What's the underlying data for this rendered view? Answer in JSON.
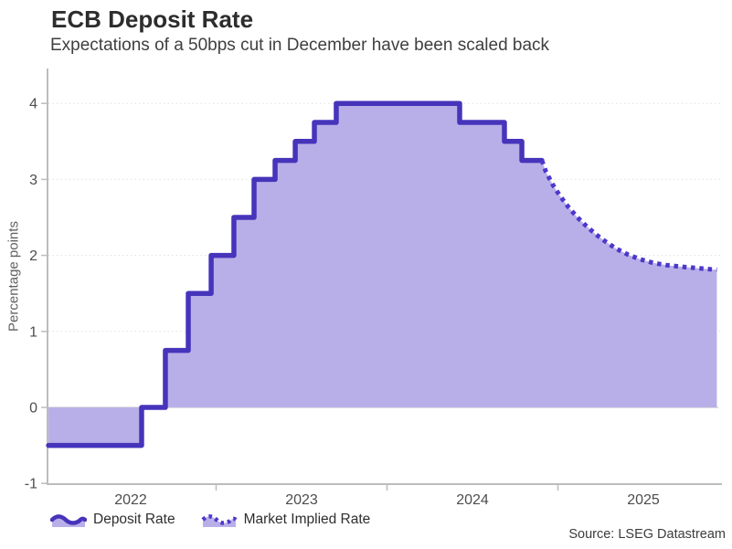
{
  "header": {
    "title": "ECB Deposit Rate",
    "subtitle": "Expectations of a 50bps cut in December have been scaled back"
  },
  "source": "Source: LSEG Datastream",
  "legend": [
    {
      "label": "Deposit Rate",
      "style": "solid-area"
    },
    {
      "label": "Market Implied Rate",
      "style": "dotted-area"
    }
  ],
  "colors": {
    "line": "#4634bb",
    "dots": "#4b38cc",
    "fill": "#b9afe8",
    "axis": "#bcbcbc",
    "grid": "#e0e0e0",
    "zero_line": "#cccccc",
    "tick_text": "#4d4d4d"
  },
  "chart_data": {
    "type": "area",
    "title": "ECB Deposit Rate",
    "ylabel": "Percentage points",
    "grid": "horizontal-dotted",
    "legend_position": "bottom-left",
    "ylim": [
      -1,
      4.4
    ],
    "xlim": [
      2022.019,
      2025.93
    ],
    "y_ticks": [
      -1,
      0,
      1,
      2,
      3,
      4
    ],
    "x_ticks": [
      2023,
      2024,
      2025
    ],
    "x_labels": [
      {
        "t": 2022.5,
        "label": "2022"
      },
      {
        "t": 2023.5,
        "label": "2023"
      },
      {
        "t": 2024.5,
        "label": "2024"
      },
      {
        "t": 2025.5,
        "label": "2025"
      }
    ],
    "series": [
      {
        "name": "Deposit Rate",
        "type": "step-after",
        "end_t": 2024.906,
        "points": [
          [
            2022.019,
            -0.5
          ],
          [
            2022.564,
            0.0
          ],
          [
            2022.703,
            0.75
          ],
          [
            2022.837,
            1.5
          ],
          [
            2022.971,
            2.0
          ],
          [
            2023.104,
            2.5
          ],
          [
            2023.222,
            3.0
          ],
          [
            2023.345,
            3.25
          ],
          [
            2023.463,
            3.5
          ],
          [
            2023.575,
            3.75
          ],
          [
            2023.703,
            4.0
          ],
          [
            2024.425,
            3.75
          ],
          [
            2024.687,
            3.5
          ],
          [
            2024.789,
            3.25
          ]
        ]
      },
      {
        "name": "Market Implied Rate",
        "type": "dotted-line",
        "points": [
          [
            2024.906,
            3.25
          ],
          [
            2024.93,
            3.1
          ],
          [
            2024.97,
            2.93
          ],
          [
            2025.01,
            2.79
          ],
          [
            2025.06,
            2.64
          ],
          [
            2025.11,
            2.51
          ],
          [
            2025.16,
            2.4
          ],
          [
            2025.22,
            2.28
          ],
          [
            2025.28,
            2.18
          ],
          [
            2025.34,
            2.09
          ],
          [
            2025.41,
            2.01
          ],
          [
            2025.48,
            1.95
          ],
          [
            2025.56,
            1.9
          ],
          [
            2025.64,
            1.87
          ],
          [
            2025.73,
            1.85
          ],
          [
            2025.83,
            1.83
          ],
          [
            2025.93,
            1.81
          ]
        ]
      }
    ]
  }
}
